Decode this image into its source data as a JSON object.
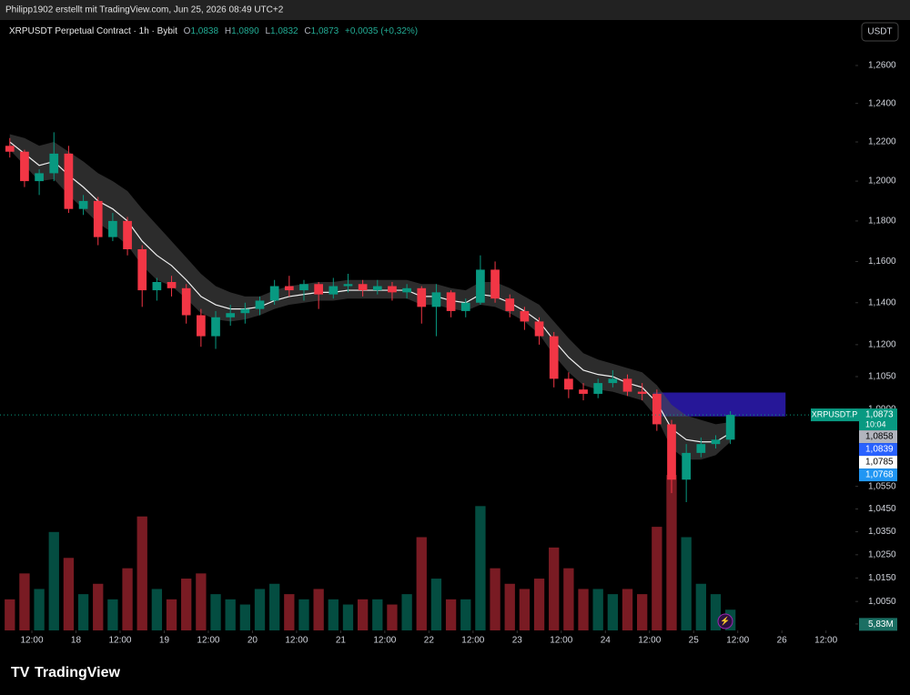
{
  "chart_data": {
    "type": "candlestick",
    "header": "Philipp1902 erstellt mit TradingView.com, Jun 25, 2026 08:49 UTC+2",
    "symbol_title": "XRPUSDT Perpetual Contract · 1h · Bybit",
    "ohlc_legend": [
      {
        "key": "O",
        "value": "1,0838"
      },
      {
        "key": "H",
        "value": "1,0890"
      },
      {
        "key": "L",
        "value": "1,0832"
      },
      {
        "key": "C",
        "value": "1,0873"
      }
    ],
    "change": "+0,0035 (+0,32%)",
    "currency": "USDT",
    "symbol_tag": "XRPUSDT.P",
    "brand": "TradingView",
    "x": [
      "2026-06-17 04:00",
      "2026-06-17 08:00",
      "2026-06-17 12:00",
      "2026-06-17 16:00",
      "2026-06-17 20:00",
      "2026-06-18 00:00",
      "2026-06-18 04:00",
      "2026-06-18 08:00",
      "2026-06-18 12:00",
      "2026-06-18 16:00",
      "2026-06-18 20:00",
      "2026-06-19 00:00",
      "2026-06-19 04:00",
      "2026-06-19 08:00",
      "2026-06-19 12:00",
      "2026-06-19 16:00",
      "2026-06-19 20:00",
      "2026-06-20 00:00",
      "2026-06-20 04:00",
      "2026-06-20 08:00",
      "2026-06-20 12:00",
      "2026-06-20 16:00",
      "2026-06-20 20:00",
      "2026-06-21 00:00",
      "2026-06-21 04:00",
      "2026-06-21 08:00",
      "2026-06-21 12:00",
      "2026-06-21 16:00",
      "2026-06-21 20:00",
      "2026-06-22 00:00",
      "2026-06-22 04:00",
      "2026-06-22 08:00",
      "2026-06-22 12:00",
      "2026-06-22 16:00",
      "2026-06-22 20:00",
      "2026-06-23 00:00",
      "2026-06-23 04:00",
      "2026-06-23 08:00",
      "2026-06-23 12:00",
      "2026-06-23 16:00",
      "2026-06-23 20:00",
      "2026-06-24 00:00",
      "2026-06-24 04:00",
      "2026-06-24 08:00",
      "2026-06-24 12:00",
      "2026-06-24 16:00",
      "2026-06-24 20:00",
      "2026-06-25 00:00",
      "2026-06-25 04:00",
      "2026-06-25 08:00"
    ],
    "open": [
      1.218,
      1.215,
      1.2,
      1.204,
      1.214,
      1.186,
      1.19,
      1.172,
      1.18,
      1.166,
      1.146,
      1.15,
      1.147,
      1.134,
      1.124,
      1.133,
      1.135,
      1.137,
      1.141,
      1.148,
      1.146,
      1.149,
      1.144,
      1.148,
      1.149,
      1.146,
      1.148,
      1.145,
      1.147,
      1.138,
      1.145,
      1.136,
      1.14,
      1.156,
      1.142,
      1.136,
      1.131,
      1.124,
      1.104,
      1.099,
      1.097,
      1.102,
      1.104,
      1.098,
      1.097,
      1.083,
      1.058,
      1.07,
      1.074,
      1.076
    ],
    "high": [
      1.222,
      1.216,
      1.206,
      1.225,
      1.218,
      1.193,
      1.192,
      1.184,
      1.182,
      1.168,
      1.152,
      1.153,
      1.149,
      1.137,
      1.136,
      1.139,
      1.14,
      1.143,
      1.151,
      1.153,
      1.151,
      1.15,
      1.152,
      1.154,
      1.151,
      1.151,
      1.15,
      1.149,
      1.148,
      1.149,
      1.146,
      1.142,
      1.163,
      1.16,
      1.144,
      1.138,
      1.133,
      1.126,
      1.107,
      1.102,
      1.104,
      1.108,
      1.106,
      1.102,
      1.099,
      1.085,
      1.074,
      1.077,
      1.078,
      1.089
    ],
    "low": [
      1.212,
      1.197,
      1.193,
      1.2,
      1.184,
      1.183,
      1.168,
      1.17,
      1.163,
      1.138,
      1.141,
      1.143,
      1.13,
      1.119,
      1.118,
      1.129,
      1.13,
      1.134,
      1.139,
      1.143,
      1.141,
      1.137,
      1.142,
      1.145,
      1.143,
      1.144,
      1.141,
      1.142,
      1.13,
      1.124,
      1.133,
      1.133,
      1.139,
      1.14,
      1.133,
      1.127,
      1.12,
      1.1,
      1.095,
      1.094,
      1.095,
      1.1,
      1.096,
      1.094,
      1.08,
      1.052,
      1.048,
      1.068,
      1.072,
      1.074
    ],
    "close": [
      1.215,
      1.2,
      1.204,
      1.214,
      1.186,
      1.19,
      1.172,
      1.18,
      1.166,
      1.146,
      1.15,
      1.147,
      1.134,
      1.124,
      1.133,
      1.135,
      1.137,
      1.141,
      1.148,
      1.146,
      1.149,
      1.144,
      1.148,
      1.149,
      1.146,
      1.148,
      1.145,
      1.147,
      1.138,
      1.145,
      1.136,
      1.14,
      1.156,
      1.142,
      1.136,
      1.131,
      1.124,
      1.104,
      1.099,
      1.097,
      1.102,
      1.104,
      1.098,
      1.097,
      1.083,
      1.058,
      1.07,
      1.074,
      1.076,
      1.0873
    ],
    "up_color": "#089981",
    "down_color": "#f23645",
    "ema": [
      1.22,
      1.214,
      1.208,
      1.21,
      1.203,
      1.197,
      1.19,
      1.186,
      1.18,
      1.17,
      1.163,
      1.158,
      1.151,
      1.143,
      1.139,
      1.137,
      1.137,
      1.138,
      1.141,
      1.143,
      1.144,
      1.145,
      1.145,
      1.146,
      1.146,
      1.146,
      1.146,
      1.146,
      1.143,
      1.143,
      1.141,
      1.14,
      1.144,
      1.143,
      1.14,
      1.136,
      1.131,
      1.122,
      1.114,
      1.108,
      1.106,
      1.105,
      1.102,
      1.1,
      1.093,
      1.081,
      1.076,
      1.075,
      1.075,
      1.079
    ],
    "band_upper": [
      1.224,
      1.222,
      1.218,
      1.22,
      1.215,
      1.21,
      1.204,
      1.2,
      1.195,
      1.186,
      1.178,
      1.17,
      1.162,
      1.154,
      1.148,
      1.145,
      1.143,
      1.143,
      1.146,
      1.148,
      1.149,
      1.15,
      1.15,
      1.151,
      1.151,
      1.151,
      1.151,
      1.151,
      1.149,
      1.149,
      1.147,
      1.146,
      1.15,
      1.15,
      1.147,
      1.143,
      1.139,
      1.131,
      1.123,
      1.116,
      1.113,
      1.111,
      1.109,
      1.107,
      1.101,
      1.092,
      1.087,
      1.085,
      1.083,
      1.084
    ],
    "band_lower": [
      1.216,
      1.208,
      1.2,
      1.201,
      1.193,
      1.186,
      1.179,
      1.174,
      1.168,
      1.158,
      1.151,
      1.148,
      1.142,
      1.135,
      1.132,
      1.131,
      1.132,
      1.134,
      1.137,
      1.139,
      1.14,
      1.141,
      1.141,
      1.142,
      1.142,
      1.142,
      1.142,
      1.142,
      1.139,
      1.139,
      1.137,
      1.136,
      1.139,
      1.138,
      1.135,
      1.131,
      1.125,
      1.115,
      1.107,
      1.101,
      1.099,
      1.098,
      1.096,
      1.094,
      1.086,
      1.072,
      1.067,
      1.067,
      1.069,
      1.075
    ],
    "volume": [
      30,
      55,
      40,
      95,
      70,
      35,
      45,
      30,
      60,
      110,
      40,
      30,
      50,
      55,
      35,
      30,
      25,
      40,
      45,
      35,
      30,
      40,
      30,
      25,
      30,
      30,
      25,
      35,
      90,
      50,
      30,
      30,
      120,
      60,
      45,
      40,
      50,
      80,
      60,
      40,
      40,
      35,
      40,
      35,
      100,
      150,
      90,
      45,
      35,
      20
    ],
    "volume_last": {
      "value": 5.83,
      "label": "5,83M"
    },
    "y2lim": [
      0,
      180
    ],
    "zone": {
      "x": [
        "2026-06-24 13:00",
        "2026-06-26 01:00"
      ],
      "y": [
        1.0976,
        1.0866
      ],
      "color": "#2a1aa8"
    },
    "price_tags": [
      {
        "value": 1.0873,
        "label": "1,0873",
        "countdown": "10:04",
        "color": "#089981"
      },
      {
        "value": 1.0858,
        "label": "1,0858",
        "color": "#b2b5be"
      },
      {
        "value": 1.0839,
        "label": "1,0839",
        "color": "#2962ff"
      },
      {
        "value": 1.0785,
        "label": "1,0785",
        "color": "#ffffff"
      },
      {
        "value": 1.0768,
        "label": "1,0768",
        "color": "#2196f3"
      }
    ],
    "log_scale": true,
    "ylim": [
      0.9928,
      1.2844
    ],
    "yticks": [
      {
        "value": 1.26,
        "label": "1,2600"
      },
      {
        "value": 1.24,
        "label": "1,2400"
      },
      {
        "value": 1.22,
        "label": "1,2200"
      },
      {
        "value": 1.2,
        "label": "1,2000"
      },
      {
        "value": 1.18,
        "label": "1,1800"
      },
      {
        "value": 1.16,
        "label": "1,1600"
      },
      {
        "value": 1.14,
        "label": "1,1400"
      },
      {
        "value": 1.12,
        "label": "1,1200"
      },
      {
        "value": 1.105,
        "label": "1,1050"
      },
      {
        "value": 1.09,
        "label": "1,0900"
      },
      {
        "value": 1.055,
        "label": "1,0550"
      },
      {
        "value": 1.045,
        "label": "1,0450"
      },
      {
        "value": 1.035,
        "label": "1,0350"
      },
      {
        "value": 1.025,
        "label": "1,0250"
      },
      {
        "value": 1.015,
        "label": "1,0150"
      },
      {
        "value": 1.005,
        "label": "1,0050"
      },
      {
        "value": 0.9955,
        "label": "0,9955"
      }
    ],
    "xlim": [
      "2026-06-17 03:20",
      "2026-06-26 20:00"
    ],
    "xticks": [
      {
        "value": "2026-06-17 12:00",
        "label": "12:00"
      },
      {
        "value": "2026-06-18 00:00",
        "label": "18"
      },
      {
        "value": "2026-06-18 12:00",
        "label": "12:00"
      },
      {
        "value": "2026-06-19 00:00",
        "label": "19"
      },
      {
        "value": "2026-06-19 12:00",
        "label": "12:00"
      },
      {
        "value": "2026-06-20 00:00",
        "label": "20"
      },
      {
        "value": "2026-06-20 12:00",
        "label": "12:00"
      },
      {
        "value": "2026-06-21 00:00",
        "label": "21"
      },
      {
        "value": "2026-06-21 12:00",
        "label": "12:00"
      },
      {
        "value": "2026-06-22 00:00",
        "label": "22"
      },
      {
        "value": "2026-06-22 12:00",
        "label": "12:00"
      },
      {
        "value": "2026-06-23 00:00",
        "label": "23"
      },
      {
        "value": "2026-06-23 12:00",
        "label": "12:00"
      },
      {
        "value": "2026-06-24 00:00",
        "label": "24"
      },
      {
        "value": "2026-06-24 12:00",
        "label": "12:00"
      },
      {
        "value": "2026-06-25 00:00",
        "label": "25"
      },
      {
        "value": "2026-06-25 12:00",
        "label": "12:00"
      },
      {
        "value": "2026-06-26 00:00",
        "label": "26"
      },
      {
        "value": "2026-06-26 12:00",
        "label": "12:00"
      }
    ]
  }
}
